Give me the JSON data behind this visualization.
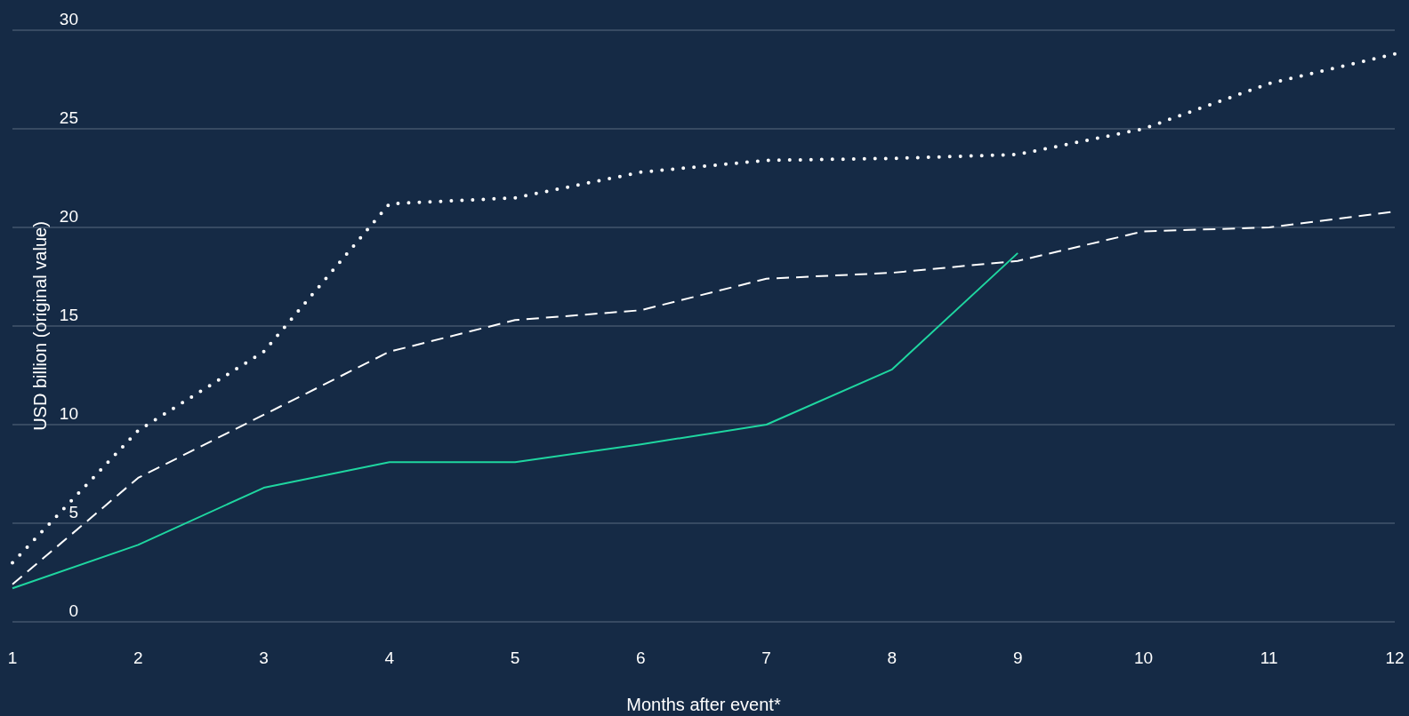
{
  "chart_data": {
    "type": "line",
    "xlabel": "Months after event*",
    "ylabel": "USD billion (original value)",
    "x": [
      1,
      2,
      3,
      4,
      5,
      6,
      7,
      8,
      9,
      10,
      11,
      12
    ],
    "xlim": [
      1,
      12
    ],
    "xticks": [
      1,
      2,
      3,
      4,
      5,
      6,
      7,
      8,
      9,
      10,
      11,
      12
    ],
    "ylim": [
      0,
      30
    ],
    "yticks": [
      0,
      5,
      10,
      15,
      20,
      25,
      30
    ],
    "grid": "y",
    "series": [
      {
        "color": "#ffffff",
        "line_style": "dotted",
        "values": [
          3.0,
          9.7,
          13.7,
          21.2,
          21.5,
          22.8,
          23.4,
          23.5,
          23.7,
          25.0,
          27.3,
          28.8
        ]
      },
      {
        "color": "#ffffff",
        "line_style": "dashed",
        "values": [
          1.9,
          7.3,
          10.5,
          13.7,
          15.3,
          15.8,
          17.4,
          17.7,
          18.3,
          19.8,
          20.0,
          20.8
        ]
      },
      {
        "color": "#1fd6a0",
        "line_style": "solid",
        "values": [
          1.7,
          3.9,
          6.8,
          8.1,
          8.1,
          9.0,
          10.0,
          12.8,
          18.7,
          null,
          null,
          null
        ]
      }
    ]
  }
}
